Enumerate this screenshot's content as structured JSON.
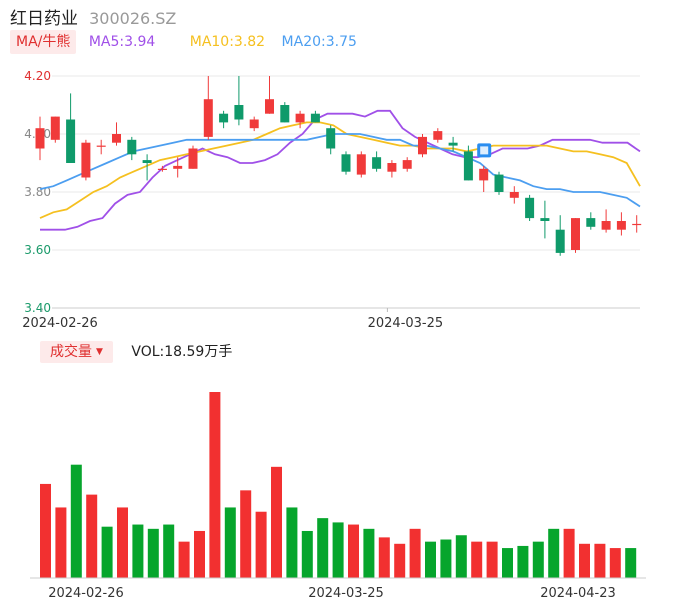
{
  "header": {
    "stock_name": "红日药业",
    "stock_code": "300026.SZ"
  },
  "legend": {
    "ma_button_label": "MA/牛熊",
    "ma5": "MA5:3.94",
    "ma10": "MA10:3.82",
    "ma20": "MA20:3.75"
  },
  "volume_panel": {
    "button_label": "成交量",
    "caret_icon": "caret-down-icon",
    "vol_label": "VOL:18.59万手"
  },
  "marker_icon": "event-flag-icon",
  "colors": {
    "up": "#f03a3a",
    "down": "#0f9a6a",
    "vol_up": "#f23030",
    "vol_down": "#06a52c",
    "ma5": "#a050e8",
    "ma10": "#f5c020",
    "ma20": "#4c9ef0",
    "grid": "#e9e9e9",
    "axis_text": "#e03030",
    "button_bg": "#fdeaea"
  },
  "chart_data": [
    {
      "type": "candlestick",
      "yticks": [
        "4.20",
        "4.00",
        "3.80",
        "3.60",
        "3.40"
      ],
      "ylim": [
        3.4,
        4.2
      ],
      "xticks": [
        {
          "index": 0,
          "label": "2024-02-26"
        },
        {
          "index": 18,
          "label": "2024-03-25"
        },
        {
          "index": 34,
          "label": "2024-04-23"
        }
      ],
      "candles": [
        {
          "o": 3.95,
          "c": 4.02,
          "h": 4.06,
          "l": 3.91
        },
        {
          "o": 3.98,
          "c": 4.06,
          "h": 4.06,
          "l": 3.97
        },
        {
          "o": 4.05,
          "c": 3.9,
          "h": 4.14,
          "l": 3.9
        },
        {
          "o": 3.85,
          "c": 3.97,
          "h": 3.98,
          "l": 3.84
        },
        {
          "o": 3.96,
          "c": 3.96,
          "h": 3.98,
          "l": 3.93
        },
        {
          "o": 3.97,
          "c": 4.0,
          "h": 4.04,
          "l": 3.96
        },
        {
          "o": 3.98,
          "c": 3.93,
          "h": 3.99,
          "l": 3.91
        },
        {
          "o": 3.91,
          "c": 3.9,
          "h": 3.93,
          "l": 3.84
        },
        {
          "o": 3.88,
          "c": 3.88,
          "h": 3.89,
          "l": 3.87
        },
        {
          "o": 3.88,
          "c": 3.89,
          "h": 3.92,
          "l": 3.85
        },
        {
          "o": 3.88,
          "c": 3.95,
          "h": 3.96,
          "l": 3.88
        },
        {
          "o": 3.99,
          "c": 4.12,
          "h": 4.2,
          "l": 3.98
        },
        {
          "o": 4.07,
          "c": 4.04,
          "h": 4.08,
          "l": 4.02
        },
        {
          "o": 4.1,
          "c": 4.05,
          "h": 4.2,
          "l": 4.03
        },
        {
          "o": 4.02,
          "c": 4.05,
          "h": 4.06,
          "l": 4.01
        },
        {
          "o": 4.07,
          "c": 4.12,
          "h": 4.2,
          "l": 4.07
        },
        {
          "o": 4.1,
          "c": 4.04,
          "h": 4.11,
          "l": 4.04
        },
        {
          "o": 4.04,
          "c": 4.07,
          "h": 4.08,
          "l": 4.02
        },
        {
          "o": 4.07,
          "c": 4.04,
          "h": 4.08,
          "l": 4.04
        },
        {
          "o": 4.02,
          "c": 3.95,
          "h": 4.03,
          "l": 3.93
        },
        {
          "o": 3.93,
          "c": 3.87,
          "h": 3.94,
          "l": 3.86
        },
        {
          "o": 3.86,
          "c": 3.93,
          "h": 3.94,
          "l": 3.85
        },
        {
          "o": 3.92,
          "c": 3.88,
          "h": 3.94,
          "l": 3.87
        },
        {
          "o": 3.87,
          "c": 3.9,
          "h": 3.91,
          "l": 3.85
        },
        {
          "o": 3.88,
          "c": 3.91,
          "h": 3.92,
          "l": 3.87
        },
        {
          "o": 3.93,
          "c": 3.99,
          "h": 4.0,
          "l": 3.92
        },
        {
          "o": 3.98,
          "c": 4.01,
          "h": 4.02,
          "l": 3.97
        },
        {
          "o": 3.97,
          "c": 3.96,
          "h": 3.99,
          "l": 3.94
        },
        {
          "o": 3.94,
          "c": 3.84,
          "h": 3.96,
          "l": 3.84
        },
        {
          "o": 3.84,
          "c": 3.88,
          "h": 3.89,
          "l": 3.8
        },
        {
          "o": 3.86,
          "c": 3.8,
          "h": 3.87,
          "l": 3.79
        },
        {
          "o": 3.78,
          "c": 3.8,
          "h": 3.82,
          "l": 3.76
        },
        {
          "o": 3.78,
          "c": 3.71,
          "h": 3.79,
          "l": 3.7
        },
        {
          "o": 3.71,
          "c": 3.7,
          "h": 3.77,
          "l": 3.64
        },
        {
          "o": 3.67,
          "c": 3.59,
          "h": 3.72,
          "l": 3.58
        },
        {
          "o": 3.6,
          "c": 3.71,
          "h": 3.71,
          "l": 3.59
        },
        {
          "o": 3.71,
          "c": 3.68,
          "h": 3.73,
          "l": 3.67
        },
        {
          "o": 3.67,
          "c": 3.7,
          "h": 3.74,
          "l": 3.66
        },
        {
          "o": 3.67,
          "c": 3.7,
          "h": 3.73,
          "l": 3.65
        },
        {
          "o": 3.69,
          "c": 3.69,
          "h": 3.72,
          "l": 3.66
        }
      ],
      "series": [
        {
          "name": "MA5",
          "values": [
            3.67,
            3.67,
            3.67,
            3.68,
            3.7,
            3.71,
            3.76,
            3.79,
            3.8,
            3.85,
            3.89,
            3.91,
            3.93,
            3.95,
            3.93,
            3.92,
            3.9,
            3.9,
            3.91,
            3.93,
            3.97,
            4.0,
            4.05,
            4.07,
            4.07,
            4.07,
            4.06,
            4.08,
            4.08,
            4.02,
            3.99,
            3.97,
            3.95,
            3.93,
            3.92,
            3.92,
            3.93,
            3.95,
            3.95,
            3.95,
            3.96,
            3.98,
            3.98,
            3.98,
            3.98,
            3.97,
            3.97,
            3.97,
            3.94
          ]
        },
        {
          "name": "MA10",
          "values": [
            3.71,
            3.73,
            3.74,
            3.77,
            3.8,
            3.82,
            3.85,
            3.87,
            3.89,
            3.91,
            3.92,
            3.93,
            3.94,
            3.95,
            3.96,
            3.97,
            3.98,
            4.0,
            4.02,
            4.03,
            4.04,
            4.04,
            4.03,
            4.0,
            3.99,
            3.98,
            3.97,
            3.96,
            3.96,
            3.95,
            3.95,
            3.95,
            3.94,
            3.95,
            3.96,
            3.96,
            3.96,
            3.96,
            3.96,
            3.95,
            3.94,
            3.94,
            3.93,
            3.92,
            3.9,
            3.82
          ]
        },
        {
          "name": "MA20",
          "values": [
            3.81,
            3.82,
            3.84,
            3.86,
            3.88,
            3.9,
            3.92,
            3.94,
            3.95,
            3.96,
            3.97,
            3.98,
            3.98,
            3.98,
            3.98,
            3.98,
            3.98,
            3.98,
            3.98,
            3.98,
            3.98,
            3.99,
            4.0,
            4.0,
            4.0,
            3.99,
            3.98,
            3.98,
            3.96,
            3.96,
            3.95,
            3.94,
            3.92,
            3.9,
            3.86,
            3.85,
            3.84,
            3.82,
            3.81,
            3.81,
            3.8,
            3.8,
            3.8,
            3.79,
            3.78,
            3.75
          ]
        }
      ]
    },
    {
      "type": "bar",
      "title": "成交量",
      "xticks": [
        {
          "index": 0,
          "label": "2024-02-26"
        },
        {
          "index": 18,
          "label": "2024-03-25"
        },
        {
          "index": 34,
          "label": "2024-04-23"
        }
      ],
      "values": [
        44,
        33,
        53,
        39,
        24,
        33,
        25,
        23,
        25,
        17,
        22,
        87,
        33,
        41,
        31,
        52,
        33,
        22,
        28,
        26,
        25,
        23,
        19,
        16,
        23,
        17,
        18,
        20,
        17,
        17,
        14,
        15,
        17,
        23,
        23,
        16,
        16,
        14,
        14
      ],
      "directions": [
        "up",
        "up",
        "down",
        "up",
        "down",
        "up",
        "down",
        "down",
        "down",
        "up",
        "up",
        "up",
        "down",
        "up",
        "up",
        "up",
        "down",
        "down",
        "down",
        "down",
        "up",
        "down",
        "up",
        "up",
        "up",
        "down",
        "down",
        "down",
        "up",
        "up",
        "down",
        "down",
        "down",
        "down",
        "up",
        "up",
        "up",
        "up",
        "down"
      ]
    }
  ]
}
